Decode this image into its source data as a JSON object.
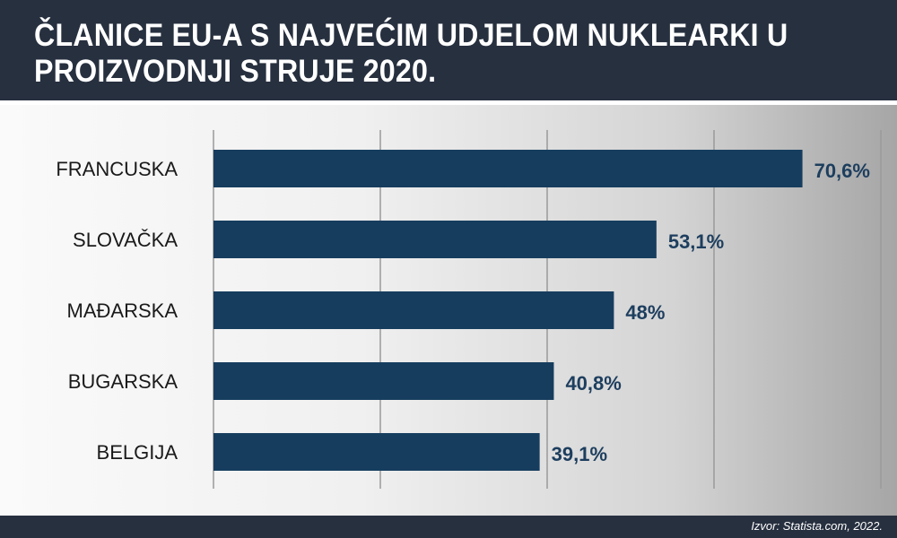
{
  "title_lines": [
    "ČLANICE EU-A S NAJVEĆIM UDJELOM NUKLEARKI U",
    "PROIZVODNJI STRUJE 2020."
  ],
  "source": "Izvor: Statista.com, 2022.",
  "colors": {
    "header": "#27303f",
    "bar": "#163d5e",
    "value_text": "#1d3e5e",
    "grid": "#9a9a9a"
  },
  "chart_data": {
    "type": "bar",
    "orientation": "horizontal",
    "categories": [
      "FRANCUSKA",
      "SLOVAČKA",
      "MAĐARSKA",
      "BUGARSKA",
      "BELGIJA"
    ],
    "values": [
      70.6,
      53.1,
      48,
      40.8,
      39.1
    ],
    "value_labels": [
      "70,6%",
      "53,1%",
      "48%",
      "40,8%",
      "39,1%"
    ],
    "title": "ČLANICE EU-A S NAJVEĆIM UDJELOM NUKLEARKI U PROIZVODNJI STRUJE 2020.",
    "xlim": [
      0,
      80
    ],
    "grid": true
  }
}
